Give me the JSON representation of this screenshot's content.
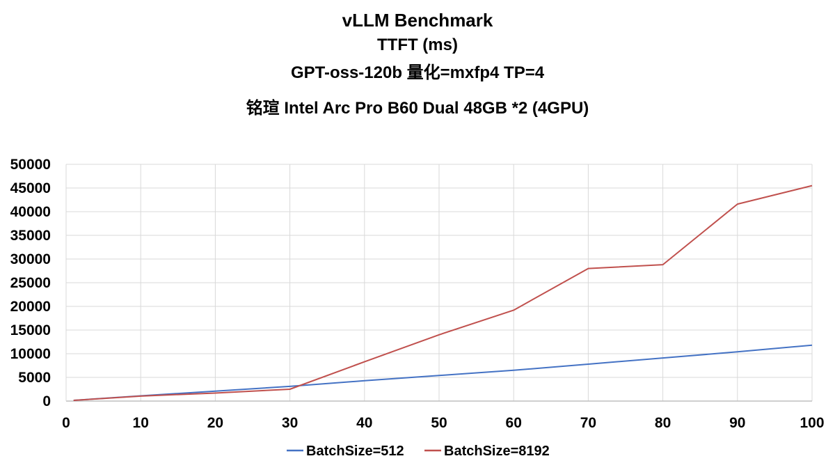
{
  "chart_data": {
    "type": "line",
    "title_lines": [
      "vLLM Benchmark",
      "TTFT (ms)",
      "GPT-oss-120b 量化=mxfp4 TP=4",
      "铭瑄 Intel Arc Pro B60 Dual 48GB *2 (4GPU)"
    ],
    "xlabel": "",
    "ylabel": "",
    "x": [
      1,
      10,
      20,
      30,
      40,
      50,
      60,
      70,
      80,
      90,
      100
    ],
    "xlim": [
      0,
      100
    ],
    "ylim": [
      0,
      50000
    ],
    "xticks": [
      "0",
      "10",
      "20",
      "30",
      "40",
      "50",
      "60",
      "70",
      "80",
      "90",
      "100"
    ],
    "yticks": [
      "0",
      "5000",
      "10000",
      "15000",
      "20000",
      "25000",
      "30000",
      "35000",
      "40000",
      "45000",
      "50000"
    ],
    "grid": true,
    "legend_position": "bottom",
    "series": [
      {
        "name": "BatchSize=512",
        "color": "#4472C4",
        "values": [
          150,
          1100,
          2100,
          3100,
          4300,
          5400,
          6500,
          7800,
          9100,
          10400,
          11800
        ]
      },
      {
        "name": "BatchSize=8192",
        "color": "#C0504D",
        "values": [
          150,
          1050,
          1700,
          2500,
          8300,
          14000,
          19200,
          28000,
          28800,
          41600,
          45500
        ]
      }
    ]
  }
}
